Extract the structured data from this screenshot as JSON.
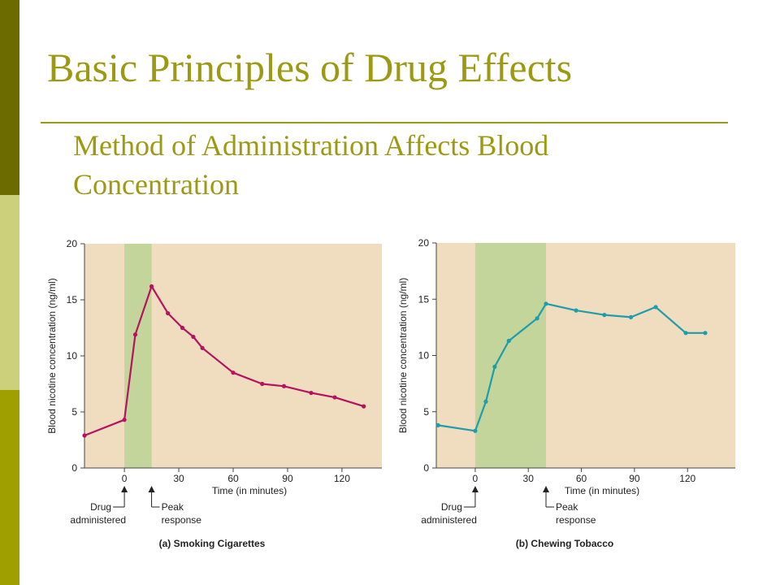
{
  "slide": {
    "title": "Basic Principles of Drug Effects",
    "subtitle": "Method of Administration Affects Blood Concentration"
  },
  "colors": {
    "accent": "#9C9A13",
    "sidebar": [
      "#6B6B00",
      "#CDD07A",
      "#9FA000"
    ],
    "plot_background": "#F0DCBE",
    "highlight_band": "#C3D59A",
    "cigarettes_line": "#B3135F",
    "tobacco_line": "#1E9DAA"
  },
  "chart_data": [
    {
      "type": "line",
      "caption": "(a) Smoking Cigarettes",
      "xlabel": "Time (in minutes)",
      "ylabel": "Blood nicotine concentration (ng/ml)",
      "xlim": [
        -22,
        142
      ],
      "ylim": [
        0,
        20
      ],
      "xticks": [
        0,
        30,
        60,
        90,
        120
      ],
      "yticks": [
        0,
        5,
        10,
        15,
        20
      ],
      "grid": false,
      "band": [
        0,
        15
      ],
      "annotations": [
        {
          "text": [
            "Drug",
            "administered"
          ],
          "x": 0
        },
        {
          "text": [
            "Peak",
            "response"
          ],
          "x": 15
        }
      ],
      "series": [
        {
          "color": "#B3135F",
          "x": [
            -22,
            0,
            6,
            15,
            24,
            32,
            38,
            43,
            60,
            76,
            88,
            103,
            116,
            132
          ],
          "y": [
            2.9,
            4.3,
            11.9,
            16.2,
            13.8,
            12.5,
            11.7,
            10.7,
            8.5,
            7.5,
            7.3,
            6.7,
            6.3,
            5.5
          ]
        }
      ]
    },
    {
      "type": "line",
      "caption": "(b) Chewing Tobacco",
      "xlabel": "Time (in minutes)",
      "ylabel": "Blood nicotine concentration (ng/ml)",
      "xlim": [
        -22,
        147
      ],
      "ylim": [
        0,
        20
      ],
      "xticks": [
        0,
        30,
        60,
        90,
        120
      ],
      "yticks": [
        0,
        5,
        10,
        15,
        20
      ],
      "grid": false,
      "band": [
        0,
        40
      ],
      "annotations": [
        {
          "text": [
            "Drug",
            "administered"
          ],
          "x": 0
        },
        {
          "text": [
            "Peak",
            "response"
          ],
          "x": 40
        }
      ],
      "series": [
        {
          "color": "#1E9DAA",
          "x": [
            -21,
            0,
            6,
            11,
            19,
            35,
            40,
            57,
            73,
            88,
            102,
            119,
            130
          ],
          "y": [
            3.8,
            3.3,
            5.9,
            9.0,
            11.3,
            13.3,
            14.6,
            14.0,
            13.6,
            13.4,
            14.3,
            12.0,
            12.0
          ]
        }
      ]
    }
  ]
}
